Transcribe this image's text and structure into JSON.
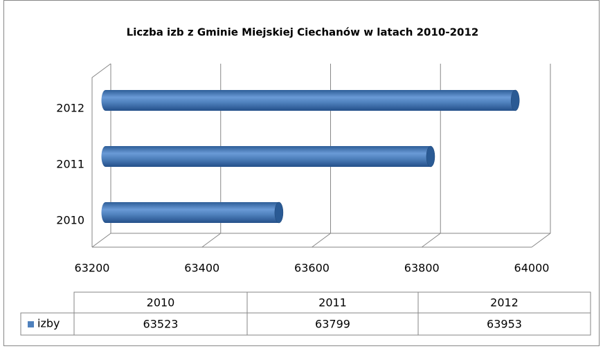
{
  "chart_data": {
    "type": "bar",
    "orientation": "horizontal",
    "title": "Liczba izb z Gminie Miejskiej Ciechanów w latach 2010-2012",
    "categories": [
      "2010",
      "2011",
      "2012"
    ],
    "series": [
      {
        "name": "izby",
        "color": "#4f81bd",
        "values": [
          63523,
          63799,
          63953
        ]
      }
    ],
    "xlim": [
      63200,
      64000
    ],
    "xticks": [
      63200,
      63400,
      63600,
      63800,
      64000
    ],
    "grid": true,
    "data_table": true
  }
}
